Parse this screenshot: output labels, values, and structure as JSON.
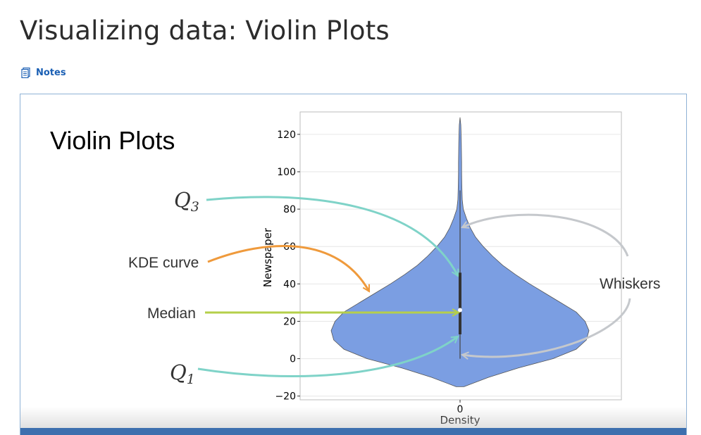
{
  "page": {
    "title": "Visualizing data: Violin Plots"
  },
  "notes": {
    "label": "Notes",
    "icon": "notes-icon"
  },
  "slide": {
    "heading": "Violin Plots",
    "annotations": {
      "q3": "Q",
      "q3_sub": "3",
      "kde": "KDE curve",
      "median": "Median",
      "q1": "Q",
      "q1_sub": "1",
      "whiskers": "Whiskers"
    },
    "colors": {
      "violin_fill": "#7b9ee2",
      "q_arrow": "#7fd3c8",
      "kde_arrow": "#ef9a3c",
      "median_arrow": "#b5cf4a",
      "whisker_arrow": "#c5c8cc",
      "player_bar": "#3d6fae"
    }
  },
  "chart_data": {
    "type": "violin",
    "ylabel": "Newspaper",
    "xlabel": "Density",
    "x_tick_labels": [
      "0"
    ],
    "y_tick_labels": [
      "120",
      "100",
      "80",
      "60",
      "40",
      "20",
      "0",
      "−20"
    ],
    "ylim": [
      -22,
      132
    ],
    "grid": true,
    "violin": {
      "min": -15,
      "max": 129,
      "whisker_low": 0,
      "whisker_high": 90,
      "q1": 13,
      "median": 26,
      "q3": 46,
      "profile": [
        [
          -15,
          0.03
        ],
        [
          -10,
          0.22
        ],
        [
          -5,
          0.45
        ],
        [
          0,
          0.72
        ],
        [
          5,
          0.9
        ],
        [
          10,
          0.98
        ],
        [
          15,
          1.0
        ],
        [
          20,
          0.97
        ],
        [
          25,
          0.9
        ],
        [
          30,
          0.78
        ],
        [
          35,
          0.66
        ],
        [
          40,
          0.54
        ],
        [
          45,
          0.43
        ],
        [
          50,
          0.33
        ],
        [
          55,
          0.25
        ],
        [
          60,
          0.18
        ],
        [
          65,
          0.12
        ],
        [
          70,
          0.08
        ],
        [
          75,
          0.05
        ],
        [
          80,
          0.025
        ],
        [
          85,
          0.017
        ],
        [
          90,
          0.015
        ],
        [
          95,
          0.013
        ],
        [
          100,
          0.012
        ],
        [
          105,
          0.012
        ],
        [
          110,
          0.011
        ],
        [
          115,
          0.01
        ],
        [
          120,
          0.008
        ],
        [
          125,
          0.006
        ],
        [
          129,
          0.0
        ]
      ]
    }
  }
}
